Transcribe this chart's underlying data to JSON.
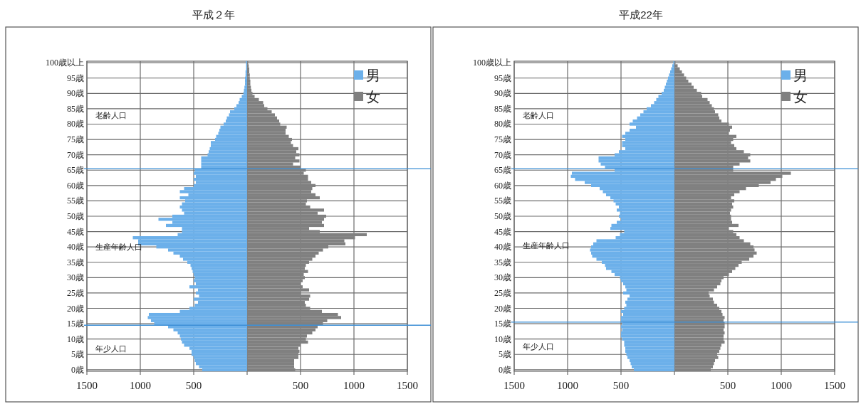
{
  "chart_data": [
    {
      "type": "bar",
      "orientation": "horizontal",
      "stacked": true,
      "title": "平成２年",
      "grid": true,
      "legend": "top right",
      "x": [
        0,
        1,
        2,
        3,
        4,
        5,
        6,
        7,
        8,
        9,
        10,
        11,
        12,
        13,
        14,
        15,
        16,
        17,
        18,
        19,
        20,
        21,
        22,
        23,
        24,
        25,
        26,
        27,
        28,
        29,
        30,
        31,
        32,
        33,
        34,
        35,
        36,
        37,
        38,
        39,
        40,
        41,
        42,
        43,
        44,
        45,
        46,
        47,
        48,
        49,
        50,
        51,
        52,
        53,
        54,
        55,
        56,
        57,
        58,
        59,
        60,
        61,
        62,
        63,
        64,
        65,
        66,
        67,
        68,
        69,
        70,
        71,
        72,
        73,
        74,
        75,
        76,
        77,
        78,
        79,
        80,
        81,
        82,
        83,
        84,
        85,
        86,
        87,
        88,
        89,
        90,
        91,
        92,
        93,
        94,
        95,
        96,
        97,
        98,
        99,
        100
      ],
      "xlim": [
        -1500,
        1500
      ],
      "xticks": [
        {
          "value": -1500,
          "label": "1500"
        },
        {
          "value": -1000,
          "label": "1000"
        },
        {
          "value": -500,
          "label": "500"
        },
        {
          "value": 0,
          "label": null
        },
        500,
        1000,
        1500
      ],
      "ylim": [
        -0.5,
        100.5
      ],
      "yticks": [
        {
          "value": 0,
          "label": "0歳"
        },
        {
          "value": 5,
          "label": "5歳"
        },
        {
          "value": 10,
          "label": "10歳"
        },
        {
          "value": 15,
          "label": "15歳"
        },
        {
          "value": 20,
          "label": "20歳"
        },
        {
          "value": 25,
          "label": "25歳"
        },
        {
          "value": 30,
          "label": "30歳"
        },
        {
          "value": 35,
          "label": "35歳"
        },
        {
          "value": 40,
          "label": "40歳"
        },
        {
          "value": 45,
          "label": "45歳"
        },
        {
          "value": 50,
          "label": "50歳"
        },
        {
          "value": 55,
          "label": "55歳"
        },
        {
          "value": 60,
          "label": "60歳"
        },
        {
          "value": 65,
          "label": "65歳"
        },
        {
          "value": 70,
          "label": "70歳"
        },
        {
          "value": 75,
          "label": "75歳"
        },
        {
          "value": 80,
          "label": "80歳"
        },
        {
          "value": 85,
          "label": "85歳"
        },
        {
          "value": 90,
          "label": "90歳"
        },
        {
          "value": 95,
          "label": "95歳"
        },
        {
          "value": 100,
          "label": "100歳以上"
        }
      ],
      "ref_lines": [
        {
          "axis": "y",
          "value": 65.5,
          "color": "#3d8fd6"
        },
        {
          "axis": "y",
          "value": 14.5,
          "color": "#3d8fd6"
        }
      ],
      "annotations": [
        "老齢人口",
        "生産年齢人口",
        "年少人口"
      ],
      "series": [
        {
          "name": "男",
          "color": "#6cb0ea",
          "values": [
            -420,
            -450,
            -480,
            -490,
            -500,
            -520,
            -520,
            -540,
            -590,
            -610,
            -620,
            -630,
            -650,
            -690,
            -740,
            -870,
            -900,
            -930,
            -920,
            -630,
            -540,
            -490,
            -460,
            -500,
            -450,
            -480,
            -460,
            -540,
            -480,
            -500,
            -490,
            -500,
            -510,
            -520,
            -530,
            -560,
            -600,
            -630,
            -690,
            -740,
            -850,
            -1020,
            -1020,
            -1070,
            -650,
            -610,
            -610,
            -760,
            -700,
            -830,
            -700,
            -590,
            -610,
            -630,
            -610,
            -580,
            -630,
            -550,
            -630,
            -590,
            -500,
            -480,
            -500,
            -480,
            -500,
            -490,
            -430,
            -430,
            -430,
            -430,
            -370,
            -360,
            -350,
            -340,
            -340,
            -300,
            -290,
            -270,
            -260,
            -250,
            -220,
            -200,
            -190,
            -170,
            -160,
            -120,
            -100,
            -80,
            -70,
            -50,
            -35,
            -30,
            -25,
            -20,
            -20,
            -20,
            -15,
            -15,
            -10,
            -10,
            -10
          ]
        },
        {
          "name": "女",
          "color": "#808080",
          "values": [
            450,
            440,
            440,
            440,
            480,
            480,
            490,
            480,
            500,
            570,
            550,
            560,
            610,
            640,
            660,
            710,
            750,
            880,
            850,
            700,
            590,
            550,
            540,
            580,
            590,
            500,
            580,
            520,
            500,
            520,
            540,
            530,
            570,
            540,
            550,
            580,
            610,
            640,
            670,
            710,
            760,
            920,
            910,
            1010,
            1120,
            680,
            580,
            720,
            700,
            720,
            740,
            660,
            720,
            590,
            550,
            560,
            680,
            640,
            600,
            610,
            640,
            600,
            570,
            570,
            530,
            550,
            500,
            430,
            490,
            450,
            490,
            460,
            480,
            430,
            410,
            420,
            390,
            360,
            360,
            370,
            310,
            300,
            280,
            260,
            230,
            190,
            160,
            150,
            110,
            70,
            50,
            40,
            35,
            30,
            30,
            25,
            25,
            20,
            20,
            15,
            10
          ]
        }
      ]
    },
    {
      "type": "bar",
      "orientation": "horizontal",
      "stacked": true,
      "title": "平成22年",
      "grid": true,
      "legend": "top right",
      "x": [
        0,
        1,
        2,
        3,
        4,
        5,
        6,
        7,
        8,
        9,
        10,
        11,
        12,
        13,
        14,
        15,
        16,
        17,
        18,
        19,
        20,
        21,
        22,
        23,
        24,
        25,
        26,
        27,
        28,
        29,
        30,
        31,
        32,
        33,
        34,
        35,
        36,
        37,
        38,
        39,
        40,
        41,
        42,
        43,
        44,
        45,
        46,
        47,
        48,
        49,
        50,
        51,
        52,
        53,
        54,
        55,
        56,
        57,
        58,
        59,
        60,
        61,
        62,
        63,
        64,
        65,
        66,
        67,
        68,
        69,
        70,
        71,
        72,
        73,
        74,
        75,
        76,
        77,
        78,
        79,
        80,
        81,
        82,
        83,
        84,
        85,
        86,
        87,
        88,
        89,
        90,
        91,
        92,
        93,
        94,
        95,
        96,
        97,
        98,
        99,
        100
      ],
      "xlim": [
        -1500,
        1500
      ],
      "xticks": [
        {
          "value": -1500,
          "label": "1500"
        },
        {
          "value": -1000,
          "label": "1000"
        },
        {
          "value": -500,
          "label": "500"
        },
        {
          "value": 0,
          "label": null
        },
        500,
        1000,
        1500
      ],
      "ylim": [
        -0.5,
        100.5
      ],
      "yticks": [
        {
          "value": 0,
          "label": "0歳"
        },
        {
          "value": 5,
          "label": "5歳"
        },
        {
          "value": 10,
          "label": "10歳"
        },
        {
          "value": 15,
          "label": "15歳"
        },
        {
          "value": 20,
          "label": "20歳"
        },
        {
          "value": 25,
          "label": "25歳"
        },
        {
          "value": 30,
          "label": "30歳"
        },
        {
          "value": 35,
          "label": "35歳"
        },
        {
          "value": 40,
          "label": "40歳"
        },
        {
          "value": 45,
          "label": "45歳"
        },
        {
          "value": 50,
          "label": "50歳"
        },
        {
          "value": 55,
          "label": "55歳"
        },
        {
          "value": 60,
          "label": "60歳"
        },
        {
          "value": 65,
          "label": "65歳"
        },
        {
          "value": 70,
          "label": "70歳"
        },
        {
          "value": 75,
          "label": "75歳"
        },
        {
          "value": 80,
          "label": "80歳"
        },
        {
          "value": 85,
          "label": "85歳"
        },
        {
          "value": 90,
          "label": "90歳"
        },
        {
          "value": 95,
          "label": "95歳"
        },
        {
          "value": 100,
          "label": "100歳以上"
        }
      ],
      "ref_lines": [
        {
          "axis": "y",
          "value": 65.5,
          "color": "#3d8fd6"
        },
        {
          "axis": "y",
          "value": 15.5,
          "color": "#3d8fd6"
        }
      ],
      "annotations": [
        "老齢人口",
        "生産年齢人口",
        "年少人口"
      ],
      "series": [
        {
          "name": "男",
          "color": "#6cb0ea",
          "values": [
            -380,
            -400,
            -410,
            -420,
            -440,
            -450,
            -460,
            -460,
            -470,
            -470,
            -490,
            -500,
            -500,
            -490,
            -500,
            -490,
            -500,
            -500,
            -480,
            -500,
            -470,
            -450,
            -460,
            -440,
            -420,
            -480,
            -450,
            -460,
            -480,
            -500,
            -510,
            -560,
            -590,
            -640,
            -650,
            -680,
            -730,
            -770,
            -780,
            -790,
            -780,
            -760,
            -730,
            -550,
            -510,
            -470,
            -600,
            -590,
            -540,
            -500,
            -520,
            -510,
            -540,
            -520,
            -550,
            -570,
            -600,
            -640,
            -670,
            -700,
            -780,
            -840,
            -930,
            -970,
            -960,
            -560,
            -650,
            -690,
            -710,
            -710,
            -560,
            -520,
            -460,
            -490,
            -490,
            -460,
            -490,
            -460,
            -420,
            -360,
            -420,
            -390,
            -350,
            -320,
            -290,
            -260,
            -220,
            -190,
            -170,
            -150,
            -120,
            -100,
            -90,
            -80,
            -70,
            -60,
            -50,
            -40,
            -30,
            -20,
            -10
          ]
        },
        {
          "name": "女",
          "color": "#808080",
          "values": [
            340,
            360,
            370,
            380,
            410,
            400,
            420,
            430,
            440,
            470,
            460,
            460,
            470,
            460,
            470,
            470,
            460,
            470,
            450,
            440,
            420,
            400,
            370,
            360,
            330,
            320,
            370,
            400,
            430,
            440,
            460,
            510,
            540,
            570,
            600,
            630,
            700,
            740,
            770,
            750,
            740,
            710,
            650,
            610,
            580,
            550,
            510,
            600,
            540,
            530,
            530,
            520,
            530,
            550,
            540,
            560,
            530,
            560,
            610,
            670,
            790,
            900,
            950,
            1010,
            1090,
            550,
            550,
            610,
            710,
            690,
            710,
            650,
            580,
            560,
            530,
            550,
            580,
            510,
            520,
            540,
            510,
            440,
            420,
            410,
            380,
            370,
            350,
            330,
            310,
            260,
            250,
            210,
            180,
            160,
            130,
            110,
            90,
            70,
            50,
            30,
            10
          ]
        }
      ]
    }
  ]
}
